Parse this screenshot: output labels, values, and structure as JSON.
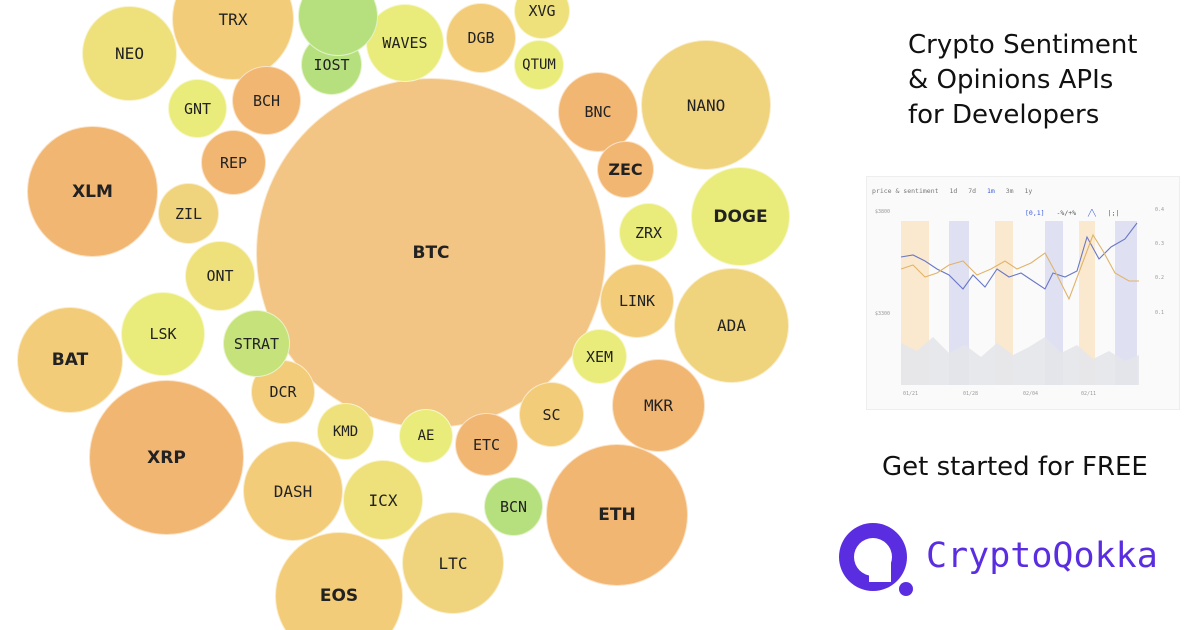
{
  "colors": {
    "orange": "#f2b673",
    "peach": "#f3c584",
    "amber": "#f3cc79",
    "sand": "#f0d37d",
    "yellow": "#eee07a",
    "lime": "#e9ec7a",
    "green": "#c6e27a",
    "leaf": "#b6e07d",
    "brand": "#5a2ee0"
  },
  "bubbles": [
    {
      "label": "BTC",
      "bold": true,
      "color": "peach"
    },
    {
      "label": "XRP",
      "bold": true,
      "color": "orange"
    },
    {
      "label": "ETH",
      "bold": true,
      "color": "orange"
    },
    {
      "label": "EOS",
      "bold": true,
      "color": "amber"
    },
    {
      "label": "XLM",
      "bold": true,
      "color": "orange"
    },
    {
      "label": "BAT",
      "bold": true,
      "color": "amber"
    },
    {
      "label": "NANO",
      "bold": false,
      "color": "sand"
    },
    {
      "label": "ADA",
      "bold": false,
      "color": "sand"
    },
    {
      "label": "DOGE",
      "bold": true,
      "color": "lime"
    },
    {
      "label": "TRX",
      "bold": false,
      "color": "amber"
    },
    {
      "label": "NEO",
      "bold": false,
      "color": "yellow"
    },
    {
      "label": "DASH",
      "bold": false,
      "color": "amber"
    },
    {
      "label": "LTC",
      "bold": false,
      "color": "sand"
    },
    {
      "label": "ICX",
      "bold": false,
      "color": "yellow"
    },
    {
      "label": "MKR",
      "bold": false,
      "color": "orange"
    },
    {
      "label": "BCH",
      "bold": false,
      "color": "orange"
    },
    {
      "label": "BNC",
      "bold": false,
      "color": "orange"
    },
    {
      "label": "DCR",
      "bold": false,
      "color": "amber"
    },
    {
      "label": "LSK",
      "bold": false,
      "color": "lime"
    },
    {
      "label": "LINK",
      "bold": false,
      "color": "amber"
    },
    {
      "label": "ETC",
      "bold": false,
      "color": "orange"
    },
    {
      "label": "WAVES",
      "bold": false,
      "color": "lime"
    },
    {
      "label": "DGB",
      "bold": false,
      "color": "amber"
    },
    {
      "label": "ONT",
      "bold": false,
      "color": "yellow"
    },
    {
      "label": "REP",
      "bold": false,
      "color": "orange"
    },
    {
      "label": "ZEC",
      "bold": true,
      "color": "orange"
    },
    {
      "label": "ZIL",
      "bold": false,
      "color": "sand"
    },
    {
      "label": "SC",
      "bold": false,
      "color": "amber"
    },
    {
      "label": "BCN",
      "bold": false,
      "color": "leaf"
    },
    {
      "label": "KMD",
      "bold": false,
      "color": "yellow"
    },
    {
      "label": "STRAT",
      "bold": false,
      "color": "green"
    },
    {
      "label": "ZRX",
      "bold": false,
      "color": "lime"
    },
    {
      "label": "GNT",
      "bold": false,
      "color": "lime"
    },
    {
      "label": "IOST",
      "bold": false,
      "color": "leaf"
    },
    {
      "label": "XEM",
      "bold": false,
      "color": "lime"
    },
    {
      "label": "XVG",
      "bold": false,
      "color": "yellow"
    },
    {
      "label": "QTUM",
      "bold": false,
      "color": "lime"
    },
    {
      "label": "AE",
      "bold": false,
      "color": "lime"
    },
    {
      "label": "",
      "bold": false,
      "color": "leaf"
    }
  ],
  "headline": [
    "Crypto Sentiment",
    "& Opinions APIs",
    "for Developers"
  ],
  "chart_preview": {
    "title": "price & sentiment",
    "ranges": [
      "1d",
      "7d",
      "1m",
      "3m",
      "1y"
    ],
    "active_range": "1m",
    "controls": [
      "[0,1]",
      "-%/+%",
      "╱╲",
      "|;|"
    ],
    "y_left_ticks": [
      "$3800",
      "$3300"
    ],
    "y_right_ticks": [
      "0.4",
      "0.3",
      "0.2",
      "0.1"
    ],
    "x_ticks": [
      "01/21",
      "01/28",
      "02/04",
      "02/11"
    ]
  },
  "cta": "Get started for FREE",
  "brand": "CryptoQokka"
}
